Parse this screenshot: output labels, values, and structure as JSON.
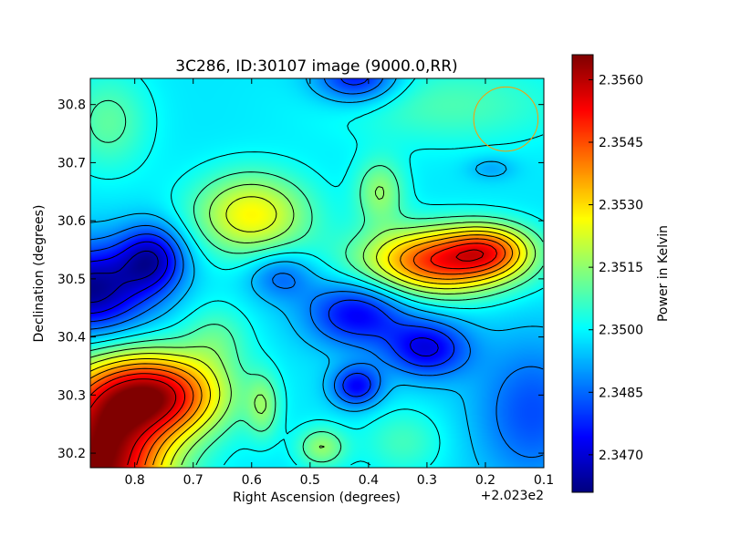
{
  "chart_data": {
    "type": "heatmap",
    "title": "3C286, ID:30107 image (9000.0,RR)",
    "xlabel": "Right Ascension (degrees)",
    "ylabel": "Declination (degrees)",
    "x_offset_label": "+2.023e2",
    "x_direction": "decreasing-left-to-right",
    "xlim": [
      0.876,
      0.1
    ],
    "ylim": [
      30.175,
      30.845
    ],
    "x_ticks": [
      0.8,
      0.7,
      0.6,
      0.5,
      0.4,
      0.3,
      0.2,
      0.1
    ],
    "x_tick_labels": [
      "0.8",
      "0.7",
      "0.6",
      "0.5",
      "0.4",
      "0.3",
      "0.2",
      "0.1"
    ],
    "y_ticks": [
      30.2,
      30.3,
      30.4,
      30.5,
      30.6,
      30.7,
      30.8
    ],
    "y_tick_labels": [
      "30.2",
      "30.3",
      "30.4",
      "30.5",
      "30.6",
      "30.7",
      "30.8"
    ],
    "colormap": "jet",
    "contours": true,
    "grid": false,
    "colorbar": {
      "label": "Power in Kelvin",
      "range": [
        2.3461,
        2.3566
      ],
      "ticks": [
        2.347,
        2.3485,
        2.35,
        2.3515,
        2.353,
        2.3545,
        2.356
      ],
      "tick_labels": [
        "2.3470",
        "2.3485",
        "2.3500",
        "2.3515",
        "2.3530",
        "2.3545",
        "2.3560"
      ]
    },
    "background_level": 2.3498,
    "features": [
      {
        "ra": 0.876,
        "dec": 30.48,
        "value": 2.3462,
        "sx": 0.07,
        "sy": 0.055
      },
      {
        "ra": 0.77,
        "dec": 30.535,
        "value": 2.347,
        "sx": 0.04,
        "sy": 0.04
      },
      {
        "ra": 0.86,
        "dec": 30.18,
        "value": 2.3566,
        "sx": 0.08,
        "sy": 0.1
      },
      {
        "ra": 0.76,
        "dec": 30.3,
        "value": 2.3552,
        "sx": 0.08,
        "sy": 0.05
      },
      {
        "ra": 0.6,
        "dec": 30.61,
        "value": 2.3527,
        "sx": 0.07,
        "sy": 0.05
      },
      {
        "ra": 0.28,
        "dec": 30.53,
        "value": 2.3548,
        "sx": 0.09,
        "sy": 0.04
      },
      {
        "ra": 0.19,
        "dec": 30.55,
        "value": 2.3526,
        "sx": 0.05,
        "sy": 0.03
      },
      {
        "ra": 0.42,
        "dec": 30.44,
        "value": 2.3473,
        "sx": 0.06,
        "sy": 0.04
      },
      {
        "ra": 0.3,
        "dec": 30.38,
        "value": 2.3472,
        "sx": 0.05,
        "sy": 0.035
      },
      {
        "ra": 0.42,
        "dec": 30.315,
        "value": 2.3474,
        "sx": 0.03,
        "sy": 0.025
      },
      {
        "ra": 0.42,
        "dec": 30.845,
        "value": 2.3474,
        "sx": 0.05,
        "sy": 0.03
      },
      {
        "ra": 0.12,
        "dec": 30.27,
        "value": 2.3482,
        "sx": 0.07,
        "sy": 0.09
      },
      {
        "ra": 0.55,
        "dec": 30.505,
        "value": 2.3484,
        "sx": 0.04,
        "sy": 0.03
      },
      {
        "ra": 0.38,
        "dec": 30.65,
        "value": 2.3515,
        "sx": 0.03,
        "sy": 0.04
      },
      {
        "ra": 0.26,
        "dec": 30.8,
        "value": 2.3508,
        "sx": 0.14,
        "sy": 0.05
      },
      {
        "ra": 0.845,
        "dec": 30.77,
        "value": 2.351,
        "sx": 0.05,
        "sy": 0.06
      },
      {
        "ra": 0.19,
        "dec": 30.69,
        "value": 2.3491,
        "sx": 0.03,
        "sy": 0.015
      },
      {
        "ra": 0.58,
        "dec": 30.28,
        "value": 2.3512,
        "sx": 0.02,
        "sy": 0.04
      },
      {
        "ra": 0.48,
        "dec": 30.21,
        "value": 2.3515,
        "sx": 0.03,
        "sy": 0.025
      },
      {
        "ra": 0.66,
        "dec": 30.4,
        "value": 2.3508,
        "sx": 0.04,
        "sy": 0.04
      },
      {
        "ra": 0.34,
        "dec": 30.22,
        "value": 2.3507,
        "sx": 0.05,
        "sy": 0.04
      }
    ],
    "beam": {
      "ra": 0.165,
      "dec": 30.775,
      "radius_deg": 0.055,
      "color": "#ff9900"
    },
    "colors": {
      "min": "#00008f",
      "max": "#800000",
      "contour": "#000000"
    }
  }
}
